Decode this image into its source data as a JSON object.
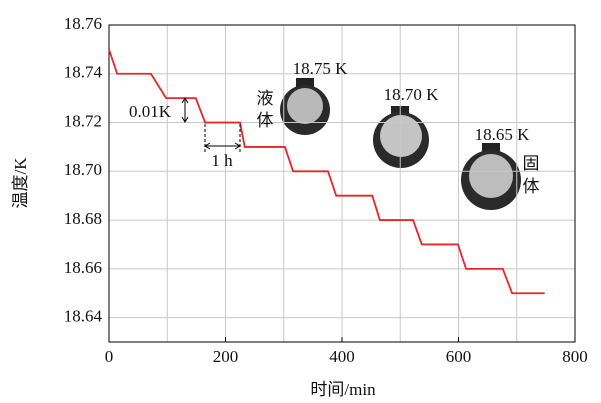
{
  "chart_data": {
    "type": "line",
    "xlabel": "时间/min",
    "ylabel": "温度/K",
    "xlim": [
      0,
      800
    ],
    "xticks": [
      0,
      200,
      400,
      600,
      800
    ],
    "x_grid_step": 100,
    "ylim": [
      18.63,
      18.76
    ],
    "yticks": [
      {
        "value": 18.64,
        "label": "18.64"
      },
      {
        "value": 18.66,
        "label": "18.66"
      },
      {
        "value": 18.68,
        "label": "18.68"
      },
      {
        "value": 18.7,
        "label": "18.70"
      },
      {
        "value": 18.72,
        "label": "18.72"
      },
      {
        "value": 18.74,
        "label": "18.74"
      },
      {
        "value": 18.76,
        "label": "18.76"
      }
    ],
    "grid": true,
    "series": [
      {
        "color": "#e8262a",
        "x": [
          0,
          14,
          72,
          98,
          149,
          165,
          225,
          233,
          302,
          316,
          376,
          390,
          452,
          465,
          522,
          537,
          599,
          613,
          676,
          692,
          748
        ],
        "values": [
          18.75,
          18.74,
          18.74,
          18.73,
          18.73,
          18.72,
          18.72,
          18.71,
          18.71,
          18.7,
          18.7,
          18.69,
          18.69,
          18.68,
          18.68,
          18.67,
          18.67,
          18.66,
          18.66,
          18.65,
          18.65
        ]
      }
    ],
    "annotations": [
      "0.01K",
      "1 h",
      "18.75 K",
      "液",
      "体",
      "18.70 K",
      "18.65 K",
      "固",
      "体"
    ]
  }
}
